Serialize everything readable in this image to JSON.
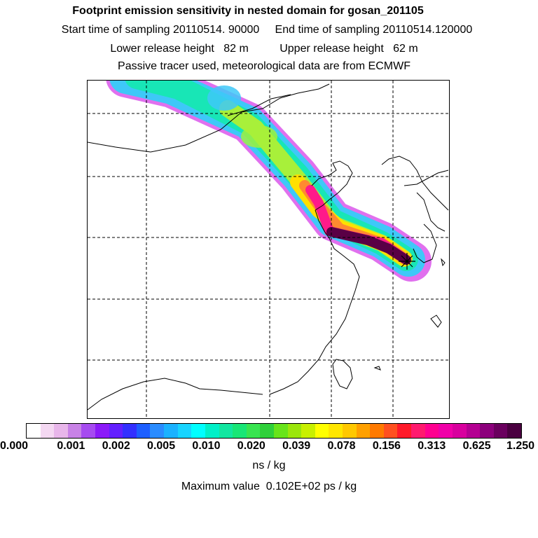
{
  "header": {
    "title": "Footprint emission sensitivity in nested domain for gosan_201105",
    "line2": "Start time of sampling 20110514. 90000     End time of sampling 20110514.120000",
    "line3": "Lower release height   82 m          Upper release height   62 m",
    "line4": "Passive tracer used, meteorological data are from ECMWF"
  },
  "map": {
    "plume_levels": [
      {
        "level": "0.001-0.002",
        "color": "#e070ee"
      },
      {
        "level": "0.010",
        "color": "#3ec8f8"
      },
      {
        "level": "0.020",
        "color": "#18e6b6"
      },
      {
        "level": "0.039",
        "color": "#a8f03a"
      },
      {
        "level": "0.078",
        "color": "#ffe000"
      },
      {
        "level": "0.156",
        "color": "#ff8a30"
      },
      {
        "level": "0.313",
        "color": "#ff1a8a"
      },
      {
        "level": "1.250",
        "color": "#5a0045"
      }
    ],
    "receptor_marker": "x-marker"
  },
  "colorbar": {
    "colors": [
      "#ffffff",
      "#f4d8f2",
      "#e8b6ea",
      "#c882e6",
      "#a64bf0",
      "#8b1af8",
      "#6320ff",
      "#3330ff",
      "#1d5fff",
      "#2a8cff",
      "#1ab2ff",
      "#18d4ff",
      "#00ffff",
      "#00f0c8",
      "#12e6a0",
      "#18e676",
      "#38e450",
      "#2fd03a",
      "#68e41a",
      "#9be60c",
      "#c8f000",
      "#ffff00",
      "#ffe600",
      "#ffc800",
      "#ffa000",
      "#ff7a00",
      "#ff5020",
      "#ff1a2a",
      "#ff1a6e",
      "#ff0090",
      "#f000a8",
      "#d8009e",
      "#b40092",
      "#8c007c",
      "#6a005e",
      "#4a0040"
    ],
    "ticks": [
      "0.000",
      "0.001",
      "0.002",
      "0.005",
      "0.010",
      "0.020",
      "0.039",
      "0.078",
      "0.156",
      "0.313",
      "0.625",
      "1.250"
    ],
    "units": "ns / kg"
  },
  "footer": {
    "max_value": "Maximum value  0.102E+02 ps / kg"
  }
}
